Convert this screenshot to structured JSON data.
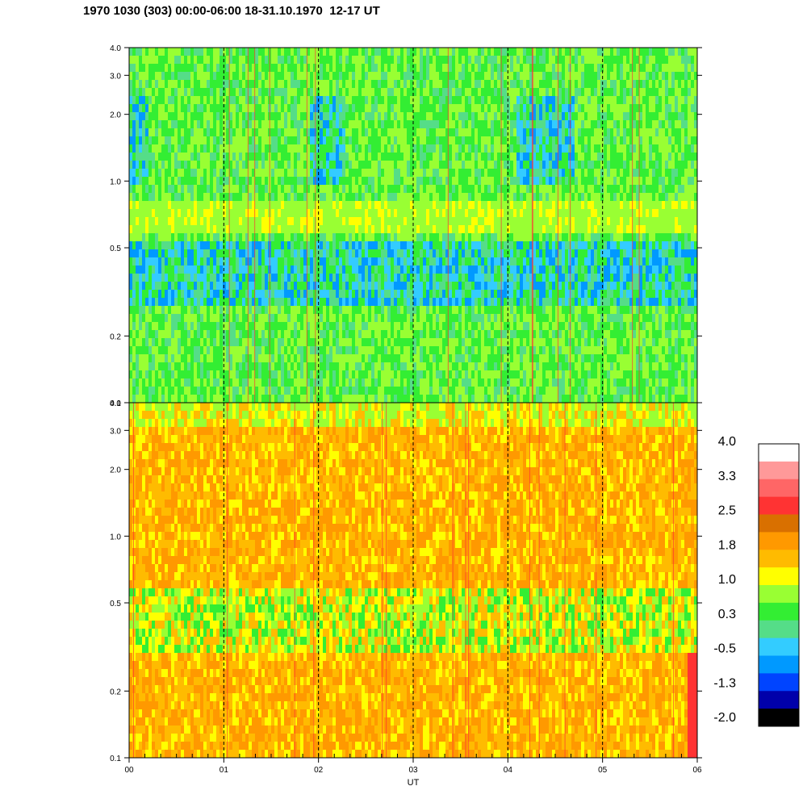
{
  "title": "1970 1030 (303) 00:00-06:00 18-31.10.1970  12-17 UT",
  "chart_data": [
    {
      "type": "heatmap",
      "panel": "upper",
      "x_range": [
        "00",
        "06"
      ],
      "y_scale": "log",
      "ylim": [
        0.1,
        4.0
      ],
      "y_ticks": [
        "0.1",
        "0.2",
        "0.5",
        "1.0",
        "2.0",
        "3.0",
        "4.0"
      ],
      "x_ticks": [],
      "vertical_guides": [
        "01",
        "02",
        "03",
        "04",
        "05"
      ],
      "dominant_levels": "0.3 to 1.0 (green to yellow-green), blue (-0.5 to -1.3) patches around 0.3-0.5 and 1.0-2.0"
    },
    {
      "type": "heatmap",
      "panel": "lower",
      "x_range": [
        "00",
        "06"
      ],
      "y_scale": "log",
      "ylim": [
        0.1,
        4.0
      ],
      "y_ticks": [
        "0.1",
        "0.2",
        "0.5",
        "1.0",
        "2.0",
        "3.0",
        "4.0"
      ],
      "x_ticks": [
        "00",
        "01",
        "02",
        "03",
        "04",
        "05",
        "06"
      ],
      "xlabel": "UT",
      "vertical_guides": [
        "01",
        "02",
        "03",
        "04",
        "05"
      ],
      "dominant_levels": "1.0 to 2.5 (yellow to orange), band of 0.3-1.0 (green) around 0.3-0.5"
    }
  ],
  "colorbar": {
    "labels": [
      "4.0",
      "3.3",
      "2.5",
      "1.8",
      "1.0",
      "0.3",
      "-0.5",
      "-1.3",
      "-2.0"
    ],
    "colors": [
      "#ffffff",
      "#ff9999",
      "#ff6666",
      "#ff3333",
      "#d97000",
      "#ff9900",
      "#ffbb00",
      "#ffff00",
      "#99ff33",
      "#33ee33",
      "#55dd88",
      "#33ccff",
      "#0099ff",
      "#0044ff",
      "#0000aa",
      "#000000"
    ]
  }
}
